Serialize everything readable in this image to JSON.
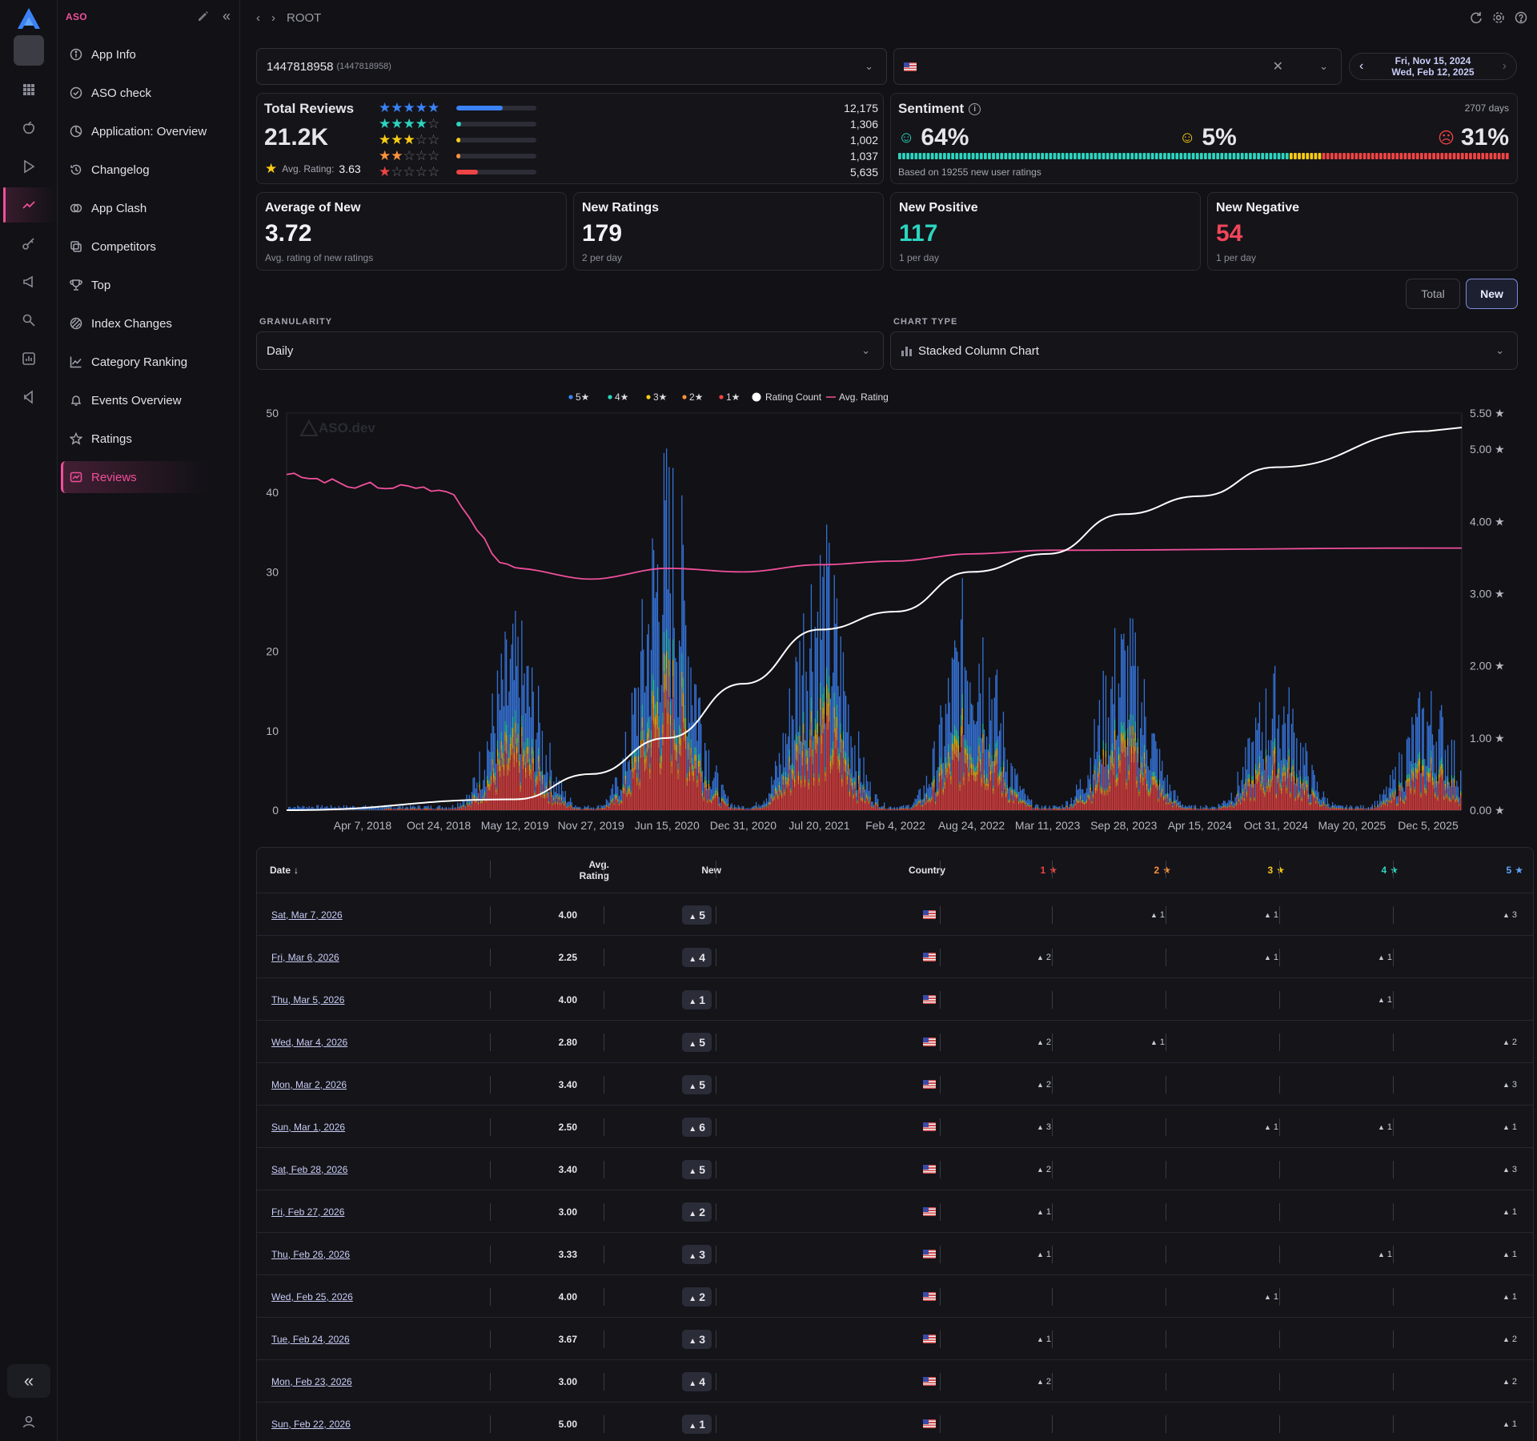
{
  "app": {
    "section_title": "ASO",
    "breadcrumb": "ROOT"
  },
  "sidebar": {
    "items": [
      {
        "label": "App Info",
        "icon": "info-icon"
      },
      {
        "label": "ASO check",
        "icon": "check-circle-icon"
      },
      {
        "label": "Application: Overview",
        "icon": "pie-chart-icon"
      },
      {
        "label": "Changelog",
        "icon": "history-icon"
      },
      {
        "label": "App Clash",
        "icon": "clash-icon"
      },
      {
        "label": "Competitors",
        "icon": "competitors-icon"
      },
      {
        "label": "Top",
        "icon": "trophy-icon"
      },
      {
        "label": "Index Changes",
        "icon": "index-icon"
      },
      {
        "label": "Category Ranking",
        "icon": "line-chart-icon"
      },
      {
        "label": "Events Overview",
        "icon": "bell-icon"
      },
      {
        "label": "Ratings",
        "icon": "star-icon"
      },
      {
        "label": "Reviews",
        "icon": "reviews-icon",
        "active": true
      }
    ]
  },
  "filters": {
    "app_id": "1447818958",
    "app_id_sub": "(1447818958)",
    "date_start": "Fri, Nov 15, 2024",
    "date_end": "Wed, Feb 12, 2025"
  },
  "total_reviews": {
    "title": "Total Reviews",
    "value": "21.2K",
    "avg_label": "Avg. Rating:",
    "avg_value": "3.63",
    "breakdown": [
      {
        "stars": 5,
        "count": "12,175",
        "fraction": 0.575,
        "color": "#3b82f6"
      },
      {
        "stars": 4,
        "count": "1,306",
        "fraction": 0.062,
        "color": "#2dd4bf"
      },
      {
        "stars": 3,
        "count": "1,002",
        "fraction": 0.047,
        "color": "#facc15"
      },
      {
        "stars": 2,
        "count": "1,037",
        "fraction": 0.049,
        "color": "#fb923c"
      },
      {
        "stars": 1,
        "count": "5,635",
        "fraction": 0.266,
        "color": "#ef4444"
      }
    ]
  },
  "sentiment": {
    "title": "Sentiment",
    "days": "2707 days",
    "positive": "64%",
    "neutral": "5%",
    "negative": "31%",
    "positive_fraction": 0.64,
    "neutral_fraction": 0.05,
    "negative_fraction": 0.31,
    "note": "Based on 19255 new user ratings"
  },
  "kpis": [
    {
      "title": "Average of New",
      "value": "3.72",
      "sub": "Avg. rating of new ratings",
      "color": "#f2f2f5"
    },
    {
      "title": "New Ratings",
      "value": "179",
      "sub": "2 per day",
      "color": "#f2f2f5"
    },
    {
      "title": "New Positive",
      "value": "117",
      "sub": "1 per day",
      "color": "#2dd4bf"
    },
    {
      "title": "New Negative",
      "value": "54",
      "sub": "1 per day",
      "color": "#f0455a"
    }
  ],
  "toggle": {
    "total": "Total",
    "new": "New"
  },
  "controls": {
    "granularity_label": "GRANULARITY",
    "granularity_value": "Daily",
    "chart_type_label": "CHART TYPE",
    "chart_type_value": "Stacked Column Chart"
  },
  "chart_data": {
    "type": "bar",
    "stacked": true,
    "watermark": "ASO.dev",
    "legend": [
      "5★",
      "4★",
      "3★",
      "2★",
      "1★",
      "Rating Count",
      "Avg. Rating"
    ],
    "legend_colors": [
      "#3b82f6",
      "#2dd4bf",
      "#facc15",
      "#fb923c",
      "#ef4444",
      "#ffffff",
      "#f0509a"
    ],
    "x_ticks": [
      "Apr 7, 2018",
      "Oct 24, 2018",
      "May 12, 2019",
      "Nov 27, 2019",
      "Jun 15, 2020",
      "Dec 31, 2020",
      "Jul 20, 2021",
      "Feb 4, 2022",
      "Aug 24, 2022",
      "Mar 11, 2023",
      "Sep 28, 2023",
      "Apr 15, 2024",
      "Oct 31, 2024",
      "May 20, 2025",
      "Dec 5, 2025"
    ],
    "y_left_ticks": [
      "0",
      "10",
      "20",
      "30",
      "40",
      "50"
    ],
    "y_right_ticks": [
      "0.00 ★",
      "1.00 ★",
      "2.00 ★",
      "3.00 ★",
      "4.00 ★",
      "5.00 ★",
      "5.50 ★"
    ],
    "ylim_left": [
      0,
      50
    ],
    "ylim_right": [
      0,
      5.5
    ],
    "peaks_approx": [
      {
        "x": "May 12, 2019",
        "y": 23
      },
      {
        "x": "Jun 15, 2020",
        "y": 44
      },
      {
        "x": "Jul 20, 2021",
        "y": 35
      },
      {
        "x": "Aug 24, 2022",
        "y": 29
      },
      {
        "x": "Sep 28, 2023",
        "y": 24
      },
      {
        "x": "Oct 31, 2024",
        "y": 17
      },
      {
        "x": "Dec 5, 2025",
        "y": 15
      }
    ],
    "avg_rating_series": [
      {
        "x": "Jan 2018",
        "y": 4.65
      },
      {
        "x": "Apr 7, 2018",
        "y": 4.5
      },
      {
        "x": "Oct 24, 2018",
        "y": 4.45
      },
      {
        "x": "May 12, 2019",
        "y": 3.35
      },
      {
        "x": "Nov 27, 2019",
        "y": 3.2
      },
      {
        "x": "Jun 15, 2020",
        "y": 3.35
      },
      {
        "x": "Dec 31, 2020",
        "y": 3.3
      },
      {
        "x": "Jul 20, 2021",
        "y": 3.4
      },
      {
        "x": "Feb 4, 2022",
        "y": 3.45
      },
      {
        "x": "Aug 24, 2022",
        "y": 3.55
      },
      {
        "x": "Mar 11, 2023",
        "y": 3.6
      },
      {
        "x": "Dec 5, 2025",
        "y": 3.63
      }
    ],
    "rating_count_series": [
      {
        "x": "Jan 2018",
        "y": 0.0
      },
      {
        "x": "May 12, 2019",
        "y": 0.15
      },
      {
        "x": "Nov 27, 2019",
        "y": 0.5
      },
      {
        "x": "Jun 15, 2020",
        "y": 1.0
      },
      {
        "x": "Dec 31, 2020",
        "y": 1.75
      },
      {
        "x": "Jul 20, 2021",
        "y": 2.5
      },
      {
        "x": "Feb 4, 2022",
        "y": 2.75
      },
      {
        "x": "Aug 24, 2022",
        "y": 3.3
      },
      {
        "x": "Mar 11, 2023",
        "y": 3.55
      },
      {
        "x": "Sep 28, 2023",
        "y": 4.1
      },
      {
        "x": "Apr 15, 2024",
        "y": 4.35
      },
      {
        "x": "Oct 31, 2024",
        "y": 4.75
      },
      {
        "x": "Dec 5, 2025",
        "y": 5.25
      }
    ]
  },
  "table": {
    "headers": {
      "date": "Date",
      "avg": "Avg.",
      "avg2": "Rating",
      "new": "New",
      "country": "Country",
      "s1": "1",
      "s2": "2",
      "s3": "3",
      "s4": "4",
      "s5": "5"
    },
    "rows": [
      {
        "date": "Sat, Mar 7, 2026",
        "avg": "4.00",
        "new": "5",
        "s1": "",
        "s2": "1",
        "s3": "1",
        "s4": "",
        "s5": "3"
      },
      {
        "date": "Fri, Mar 6, 2026",
        "avg": "2.25",
        "new": "4",
        "s1": "2",
        "s2": "",
        "s3": "1",
        "s4": "1",
        "s5": ""
      },
      {
        "date": "Thu, Mar 5, 2026",
        "avg": "4.00",
        "new": "1",
        "s1": "",
        "s2": "",
        "s3": "",
        "s4": "1",
        "s5": ""
      },
      {
        "date": "Wed, Mar 4, 2026",
        "avg": "2.80",
        "new": "5",
        "s1": "2",
        "s2": "1",
        "s3": "",
        "s4": "",
        "s5": "2"
      },
      {
        "date": "Mon, Mar 2, 2026",
        "avg": "3.40",
        "new": "5",
        "s1": "2",
        "s2": "",
        "s3": "",
        "s4": "",
        "s5": "3"
      },
      {
        "date": "Sun, Mar 1, 2026",
        "avg": "2.50",
        "new": "6",
        "s1": "3",
        "s2": "",
        "s3": "1",
        "s4": "1",
        "s5": "1"
      },
      {
        "date": "Sat, Feb 28, 2026",
        "avg": "3.40",
        "new": "5",
        "s1": "2",
        "s2": "",
        "s3": "",
        "s4": "",
        "s5": "3"
      },
      {
        "date": "Fri, Feb 27, 2026",
        "avg": "3.00",
        "new": "2",
        "s1": "1",
        "s2": "",
        "s3": "",
        "s4": "",
        "s5": "1"
      },
      {
        "date": "Thu, Feb 26, 2026",
        "avg": "3.33",
        "new": "3",
        "s1": "1",
        "s2": "",
        "s3": "",
        "s4": "1",
        "s5": "1"
      },
      {
        "date": "Wed, Feb 25, 2026",
        "avg": "4.00",
        "new": "2",
        "s1": "",
        "s2": "",
        "s3": "1",
        "s4": "",
        "s5": "1"
      },
      {
        "date": "Tue, Feb 24, 2026",
        "avg": "3.67",
        "new": "3",
        "s1": "1",
        "s2": "",
        "s3": "",
        "s4": "",
        "s5": "2"
      },
      {
        "date": "Mon, Feb 23, 2026",
        "avg": "3.00",
        "new": "4",
        "s1": "2",
        "s2": "",
        "s3": "",
        "s4": "",
        "s5": "2"
      },
      {
        "date": "Sun, Feb 22, 2026",
        "avg": "5.00",
        "new": "1",
        "s1": "",
        "s2": "",
        "s3": "",
        "s4": "",
        "s5": "1"
      }
    ]
  }
}
